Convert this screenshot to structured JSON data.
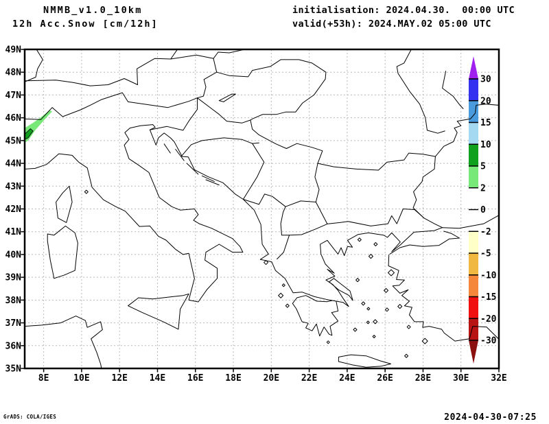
{
  "header": {
    "model": "NMMB_v1.0_10km",
    "product": "12h Acc.Snow [cm/12h]",
    "init_line": "initialisation: 2024.04.30.  00:00 UTC",
    "valid_line": "valid(+53h): 2024.MAY.02 05:00 UTC"
  },
  "footer": {
    "credit": "GrADS: COLA/IGES",
    "created": "2024-04-30-07:25"
  },
  "chart_data": {
    "type": "map",
    "title": "12h Acc.Snow [cm/12h]",
    "units": "cm/12h",
    "region": "Central-Southeast Europe / Balkans / Italy / Aegean",
    "lon_range": [
      7,
      32
    ],
    "lat_range": [
      35,
      49
    ],
    "grid": "dotted",
    "lon_ticks": {
      "values": [
        8,
        10,
        12,
        14,
        16,
        18,
        20,
        22,
        24,
        26,
        28,
        30,
        32
      ],
      "labels": [
        "8E",
        "10E",
        "12E",
        "14E",
        "16E",
        "18E",
        "20E",
        "22E",
        "24E",
        "26E",
        "28E",
        "30E",
        "32E"
      ]
    },
    "lat_ticks": {
      "values": [
        35,
        36,
        37,
        38,
        39,
        40,
        41,
        42,
        43,
        44,
        45,
        46,
        47,
        48,
        49
      ],
      "labels": [
        "35N",
        "36N",
        "37N",
        "38N",
        "39N",
        "40N",
        "41N",
        "42N",
        "43N",
        "44N",
        "45N",
        "46N",
        "47N",
        "48N",
        "49N"
      ]
    },
    "colorbar": {
      "levels": [
        30,
        20,
        15,
        10,
        5,
        2,
        0,
        -2,
        -5,
        -10,
        -15,
        -20,
        -30
      ],
      "labels": [
        "30",
        "20",
        "15",
        "10",
        "5",
        "2",
        "0",
        "-2",
        "-5",
        "-10",
        "-15",
        "-20",
        "-30"
      ],
      "colors_top_to_bottom": [
        "#a020f0",
        "#3232f0",
        "#4a9ade",
        "#a5d9f2",
        "#0fa01e",
        "#78e878",
        "#ffffff",
        "#ffffff",
        "#ffffc8",
        "#f0b840",
        "#f5873a",
        "#f01010",
        "#b81414",
        "#8b1010"
      ]
    },
    "snow_areas": [
      {
        "name": "western-alps-band",
        "value_range_cm": "2-5",
        "color": "#78e878",
        "polygon_lonlat": [
          [
            7.0,
            45.55
          ],
          [
            7.45,
            45.78
          ],
          [
            7.95,
            46.08
          ],
          [
            8.3,
            46.33
          ],
          [
            8.45,
            46.28
          ],
          [
            8.08,
            45.95
          ],
          [
            7.55,
            45.45
          ],
          [
            7.2,
            45.02
          ],
          [
            7.0,
            44.9
          ]
        ]
      },
      {
        "name": "western-alps-core",
        "value_range_cm": "5-10",
        "color": "#0fa01e",
        "polygon_lonlat": [
          [
            7.0,
            45.28
          ],
          [
            7.3,
            45.52
          ],
          [
            7.44,
            45.42
          ],
          [
            7.18,
            45.12
          ],
          [
            7.0,
            45.04
          ]
        ]
      }
    ]
  },
  "colors": {
    "grid": "#b8b8b8",
    "coast": "#000000",
    "frame": "#000000"
  }
}
